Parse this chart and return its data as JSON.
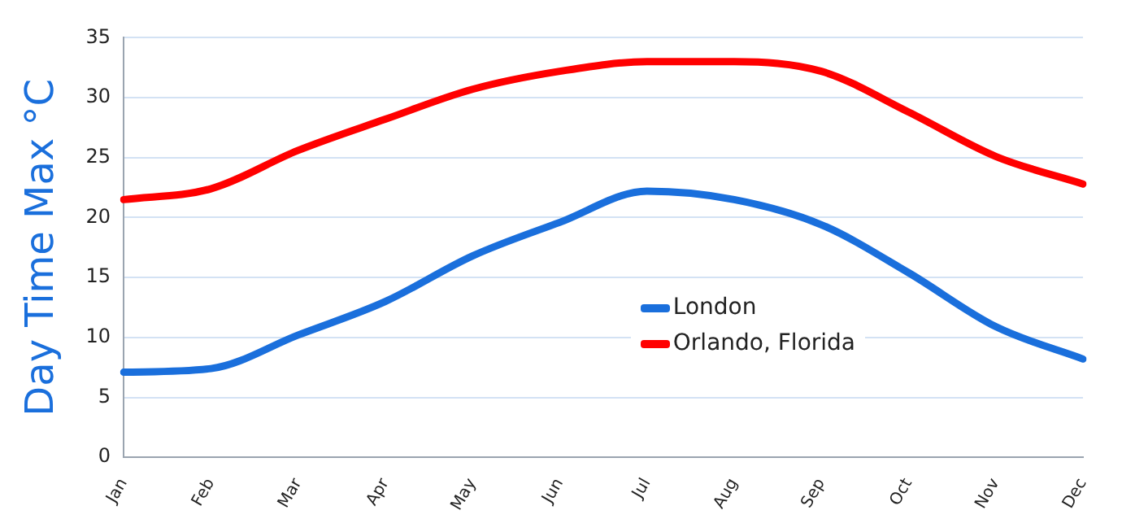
{
  "chart_data": {
    "type": "line",
    "ylabel": "Day Time Max °C",
    "categories": [
      "Jan",
      "Feb",
      "Mar",
      "Apr",
      "May",
      "Jun",
      "Jul",
      "Aug",
      "Sep",
      "Oct",
      "Nov",
      "Dec"
    ],
    "series": [
      {
        "name": "London",
        "color": "#1a6fdc",
        "values": [
          7.1,
          7.4,
          10.2,
          13,
          16.8,
          19.6,
          22.2,
          21.5,
          19.4,
          15.4,
          10.9,
          8.2
        ]
      },
      {
        "name": "Orlando, Florida",
        "color": "#ff0000",
        "values": [
          21.5,
          22.4,
          25.6,
          28.2,
          30.7,
          32.2,
          33,
          33,
          32.2,
          28.8,
          25.1,
          22.8
        ]
      }
    ],
    "ylim": [
      0,
      35
    ],
    "yticks": [
      0,
      5,
      10,
      15,
      20,
      25,
      30,
      35
    ],
    "grid": "y",
    "legend": "right",
    "marker": "none",
    "line_style": "solid"
  }
}
